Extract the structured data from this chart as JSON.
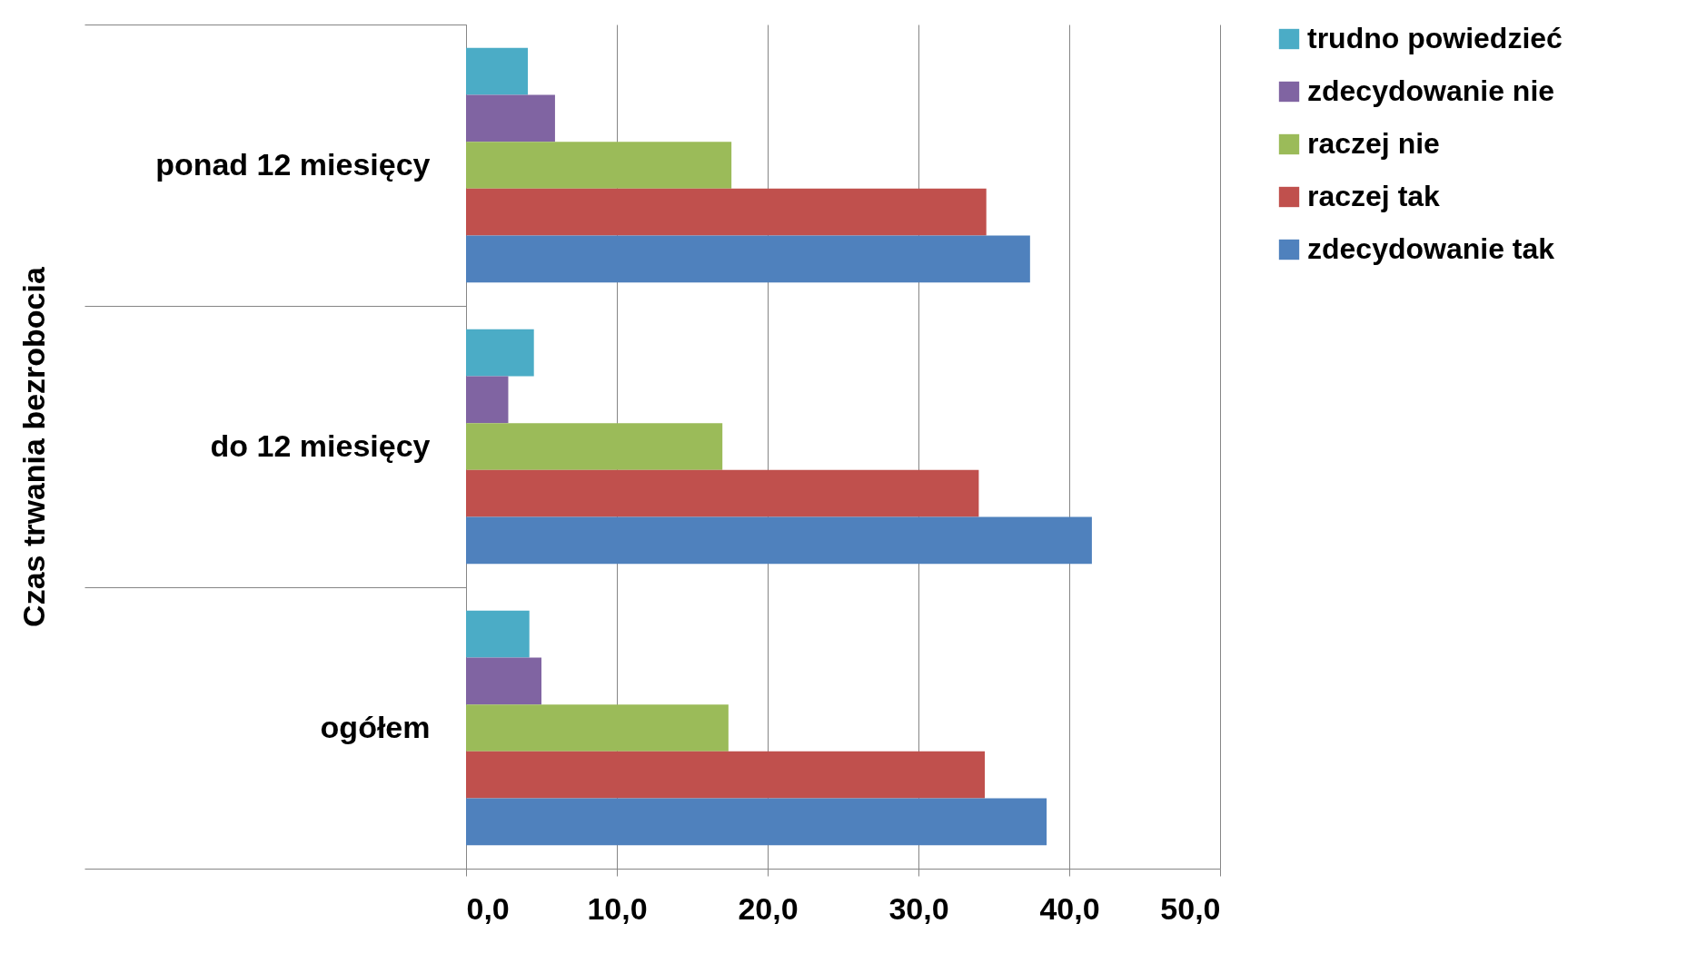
{
  "chart_data": {
    "type": "bar",
    "orientation": "horizontal",
    "ylabel": "Czas trwania bezrobocia",
    "categories": [
      "ponad 12 miesięcy",
      "do 12 miesięcy",
      "ogółem"
    ],
    "series": [
      {
        "name": "trudno powiedzieć",
        "color": "#4bacc6",
        "values": [
          4.1,
          4.5,
          4.2
        ]
      },
      {
        "name": "zdecydowanie nie",
        "color": "#8064a2",
        "values": [
          5.9,
          2.8,
          5.0
        ]
      },
      {
        "name": "raczej nie",
        "color": "#9bbb59",
        "values": [
          17.6,
          17.0,
          17.4
        ]
      },
      {
        "name": "raczej tak",
        "color": "#c0504d",
        "values": [
          34.5,
          34.0,
          34.4
        ]
      },
      {
        "name": "zdecydowanie tak",
        "color": "#4f81bd",
        "values": [
          37.4,
          41.5,
          38.5
        ]
      }
    ],
    "xlim": [
      0,
      50
    ],
    "xticks": [
      {
        "value": 0,
        "label": "0,0"
      },
      {
        "value": 10,
        "label": "10,0"
      },
      {
        "value": 20,
        "label": "20,0"
      },
      {
        "value": 30,
        "label": "30,0"
      },
      {
        "value": 40,
        "label": "40,0"
      },
      {
        "value": 50,
        "label": "50,0"
      }
    ],
    "grid": "x",
    "legend": "right"
  }
}
